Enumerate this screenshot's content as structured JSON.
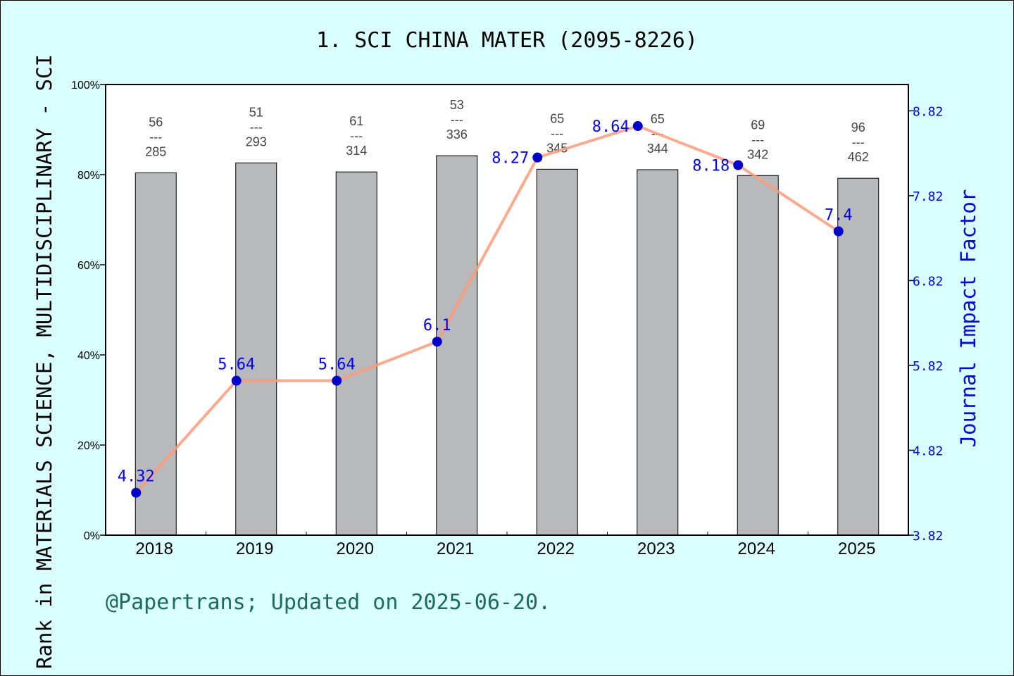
{
  "chart_data": {
    "type": "bar+line",
    "title": "1. SCI CHINA MATER (2095-8226)",
    "ylabel": "Rank in MATERIALS SCIENCE, MULTIDISCIPLINARY - SCI",
    "y2label": "Journal Impact Factor",
    "categories": [
      "2018",
      "2019",
      "2020",
      "2021",
      "2022",
      "2023",
      "2024",
      "2025"
    ],
    "ylim": [
      0,
      100
    ],
    "yticks": [
      "0%",
      "20%",
      "40%",
      "60%",
      "80%",
      "100%"
    ],
    "y2lim": [
      3.82,
      9.13
    ],
    "y2ticks": [
      "3.82",
      "4.82",
      "5.82",
      "6.82",
      "7.82",
      "8.82"
    ],
    "bars": {
      "values": [
        80.4,
        82.6,
        80.6,
        84.2,
        81.2,
        81.1,
        79.8,
        79.2
      ],
      "ranks": [
        "56",
        "51",
        "61",
        "53",
        "65",
        "65",
        "69",
        "96"
      ],
      "totals": [
        "285",
        "293",
        "314",
        "336",
        "345",
        "344",
        "342",
        "462"
      ],
      "separator": "---"
    },
    "line": {
      "values": [
        4.32,
        5.64,
        5.64,
        6.1,
        8.27,
        8.64,
        8.18,
        7.4
      ],
      "labels": [
        "4.32",
        "5.64",
        "5.64",
        "6.1",
        "8.27",
        "8.64",
        "8.18",
        "7.4"
      ]
    },
    "colors": {
      "background": "#d9ffff",
      "bar": "#b8b9bb",
      "line": "#ff9a78",
      "point": "#0000cc",
      "y2": "#0000ff",
      "footer": "#1a6b5a"
    },
    "grid": false
  },
  "footer": "@Papertrans; Updated on 2025-06-20."
}
